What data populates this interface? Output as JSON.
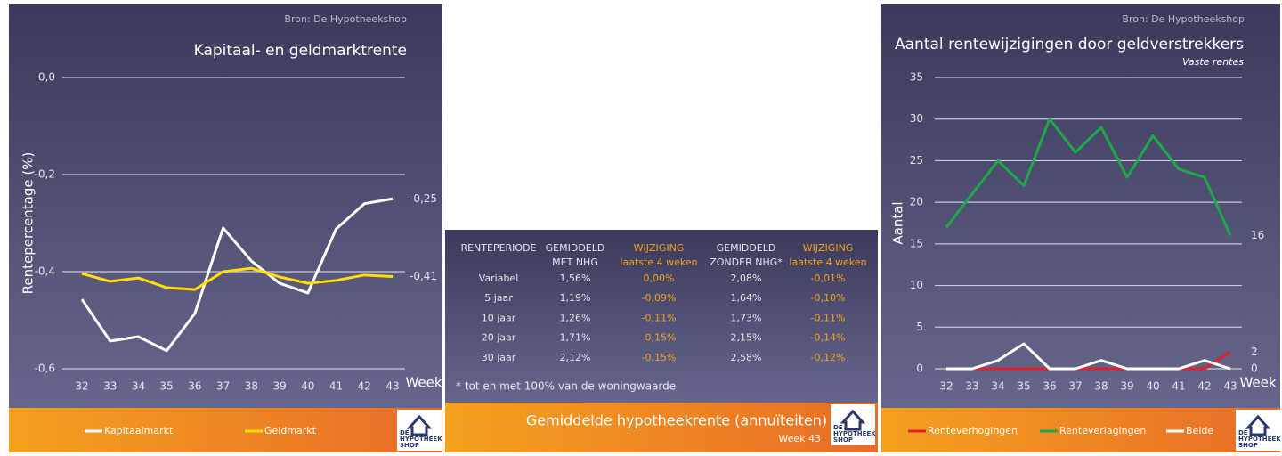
{
  "chart_data": [
    {
      "type": "line",
      "source": "Bron: De Hypotheekshop",
      "title": "Kapitaal- en geldmarktrente",
      "y_label": "Rentepercentage (%)",
      "x_label": "Week",
      "categories": [
        "32",
        "33",
        "34",
        "35",
        "36",
        "37",
        "38",
        "39",
        "40",
        "41",
        "42",
        "43"
      ],
      "ylim": [
        -0.6,
        0.0
      ],
      "yticks": [
        {
          "value": -0.6,
          "label": "-0,6"
        },
        {
          "value": -0.4,
          "label": "-0,4"
        },
        {
          "value": -0.2,
          "label": "-0,2"
        },
        {
          "value": 0.0,
          "label": "0,0"
        }
      ],
      "grid": true,
      "series": [
        {
          "name": "Kapitaalmarkt",
          "color": "#ffffff",
          "values": [
            -0.457,
            -0.543,
            -0.534,
            -0.563,
            -0.486,
            -0.31,
            -0.378,
            -0.424,
            -0.444,
            -0.312,
            -0.26,
            -0.25
          ],
          "value_labels": [
            null,
            null,
            null,
            null,
            null,
            null,
            null,
            null,
            null,
            null,
            null,
            "-0,25"
          ]
        },
        {
          "name": "Geldmarkt",
          "color": "#ffe000",
          "values": [
            -0.404,
            -0.42,
            -0.413,
            -0.433,
            -0.437,
            -0.4,
            -0.393,
            -0.411,
            -0.424,
            -0.418,
            -0.407,
            -0.41
          ],
          "value_labels": [
            null,
            null,
            null,
            null,
            null,
            null,
            null,
            null,
            null,
            null,
            null,
            "-0,41"
          ]
        }
      ]
    },
    {
      "type": "line",
      "source": "Bron: De Hypotheekshop",
      "title": "Aantal rentewijzigingen door geldverstrekkers",
      "subtitle": "Vaste rentes",
      "y_label": "Aantal",
      "x_label": "Week",
      "categories": [
        "32",
        "33",
        "34",
        "35",
        "36",
        "37",
        "38",
        "39",
        "40",
        "41",
        "42",
        "43"
      ],
      "ylim": [
        0,
        35
      ],
      "yticks": [
        0,
        5,
        10,
        15,
        20,
        25,
        30,
        35
      ],
      "grid": true,
      "series": [
        {
          "name": "Renteverhogingen",
          "color": "#e0202a",
          "values": [
            0,
            0,
            0,
            0,
            0,
            0,
            0,
            0,
            0,
            0,
            0,
            2
          ],
          "value_labels": [
            null,
            null,
            null,
            null,
            null,
            null,
            null,
            null,
            null,
            null,
            null,
            "2"
          ]
        },
        {
          "name": "Renteverlagingen",
          "color": "#1fa84a",
          "values": [
            17,
            21,
            25,
            22,
            30,
            26,
            29,
            23,
            28,
            24,
            23,
            16
          ],
          "value_labels": [
            null,
            null,
            null,
            null,
            null,
            null,
            null,
            null,
            null,
            null,
            null,
            "16"
          ]
        },
        {
          "name": "Beide",
          "color": "#ffffff",
          "values": [
            0,
            0,
            1,
            3,
            0,
            0,
            1,
            0,
            0,
            0,
            1,
            0
          ],
          "value_labels": [
            null,
            null,
            null,
            null,
            null,
            null,
            null,
            null,
            null,
            null,
            null,
            "0"
          ]
        }
      ]
    }
  ],
  "table": {
    "header": [
      [
        "RENTEPERIODE"
      ],
      [
        "GEMIDDELD",
        "MET NHG"
      ],
      [
        "WIJZIGING",
        "laatste 4 weken"
      ],
      [
        "GEMIDDELD",
        "ZONDER NHG*"
      ],
      [
        "WIJZIGING",
        "laatste 4 weken"
      ]
    ],
    "rows": [
      [
        "Variabel",
        "1,56%",
        "0,00%",
        "2,08%",
        "-0,01%"
      ],
      [
        "5 jaar",
        "1,19%",
        "-0,09%",
        "1,64%",
        "-0,10%"
      ],
      [
        "10 jaar",
        "1,26%",
        "-0,11%",
        "1,73%",
        "-0,11%"
      ],
      [
        "20 jaar",
        "1,71%",
        "-0,15%",
        "2,15%",
        "-0,14%"
      ],
      [
        "30 jaar",
        "2,12%",
        "-0,15%",
        "2,58%",
        "-0,12%"
      ]
    ],
    "footnote": "* tot en met 100% van de woningwaarde",
    "title": "Gemiddelde hypotheekrente (annuïteiten)",
    "week": "Week 43"
  },
  "logo": [
    "DE",
    "HYPOTHEEK",
    "SHOP"
  ]
}
